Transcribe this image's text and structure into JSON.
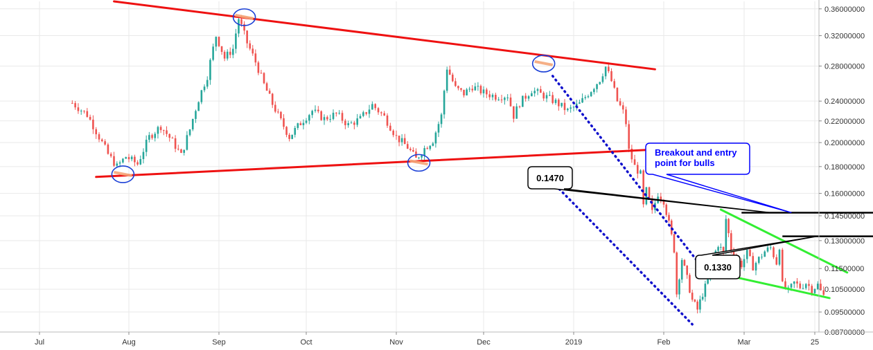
{
  "chart_data": {
    "type": "line",
    "title": "",
    "y_scale": "log",
    "ylim": [
      0.087,
      0.372
    ],
    "y_ticks": [
      "0.36000000",
      "0.32000000",
      "0.28000000",
      "0.24000000",
      "0.22000000",
      "0.20000000",
      "0.18000000",
      "0.16000000",
      "0.14500000",
      "0.13000000",
      "0.11500000",
      "0.10500000",
      "0.09500000",
      "0.08700000"
    ],
    "x_ticks": [
      "Jul",
      "Aug",
      "Sep",
      "Oct",
      "Nov",
      "Dec",
      "2019",
      "Feb",
      "Mar",
      "25"
    ],
    "price_series": {
      "name": "",
      "points": [
        {
          "d": "2018-06-12",
          "v": 0.238
        },
        {
          "d": "2018-06-17",
          "v": 0.226
        },
        {
          "d": "2018-06-21",
          "v": 0.205
        },
        {
          "d": "2018-06-24",
          "v": 0.19
        },
        {
          "d": "2018-06-27",
          "v": 0.18
        },
        {
          "d": "2018-06-30",
          "v": 0.188
        },
        {
          "d": "2018-07-04",
          "v": 0.182
        },
        {
          "d": "2018-07-08",
          "v": 0.205
        },
        {
          "d": "2018-07-12",
          "v": 0.215
        },
        {
          "d": "2018-07-16",
          "v": 0.201
        },
        {
          "d": "2018-07-19",
          "v": 0.189
        },
        {
          "d": "2018-07-22",
          "v": 0.212
        },
        {
          "d": "2018-07-25",
          "v": 0.242
        },
        {
          "d": "2018-07-28",
          "v": 0.268
        },
        {
          "d": "2018-07-31",
          "v": 0.32
        },
        {
          "d": "2018-08-03",
          "v": 0.29
        },
        {
          "d": "2018-08-06",
          "v": 0.302
        },
        {
          "d": "2018-08-08",
          "v": 0.345
        },
        {
          "d": "2018-08-11",
          "v": 0.31
        },
        {
          "d": "2018-08-14",
          "v": 0.285
        },
        {
          "d": "2018-08-17",
          "v": 0.258
        },
        {
          "d": "2018-08-20",
          "v": 0.237
        },
        {
          "d": "2018-08-23",
          "v": 0.22
        },
        {
          "d": "2018-08-26",
          "v": 0.205
        },
        {
          "d": "2018-08-30",
          "v": 0.218
        },
        {
          "d": "2018-09-03",
          "v": 0.23
        },
        {
          "d": "2018-09-07",
          "v": 0.222
        },
        {
          "d": "2018-09-11",
          "v": 0.227
        },
        {
          "d": "2018-09-15",
          "v": 0.216
        },
        {
          "d": "2018-09-19",
          "v": 0.222
        },
        {
          "d": "2018-09-23",
          "v": 0.236
        },
        {
          "d": "2018-09-27",
          "v": 0.224
        },
        {
          "d": "2018-10-01",
          "v": 0.205
        },
        {
          "d": "2018-10-05",
          "v": 0.196
        },
        {
          "d": "2018-10-08",
          "v": 0.186
        },
        {
          "d": "2018-10-11",
          "v": 0.195
        },
        {
          "d": "2018-10-14",
          "v": 0.202
        },
        {
          "d": "2018-10-17",
          "v": 0.225
        },
        {
          "d": "2018-10-19",
          "v": 0.278
        },
        {
          "d": "2018-10-22",
          "v": 0.254
        },
        {
          "d": "2018-10-25",
          "v": 0.248
        },
        {
          "d": "2018-10-28",
          "v": 0.256
        },
        {
          "d": "2018-11-01",
          "v": 0.249
        },
        {
          "d": "2018-11-05",
          "v": 0.245
        },
        {
          "d": "2018-11-09",
          "v": 0.246
        },
        {
          "d": "2018-11-11",
          "v": 0.225
        },
        {
          "d": "2018-11-13",
          "v": 0.238
        },
        {
          "d": "2018-11-17",
          "v": 0.252
        },
        {
          "d": "2018-11-21",
          "v": 0.246
        },
        {
          "d": "2018-11-25",
          "v": 0.239
        },
        {
          "d": "2018-11-29",
          "v": 0.23
        },
        {
          "d": "2018-12-03",
          "v": 0.237
        },
        {
          "d": "2018-12-07",
          "v": 0.252
        },
        {
          "d": "2018-12-10",
          "v": 0.264
        },
        {
          "d": "2018-12-12",
          "v": 0.279
        },
        {
          "d": "2018-12-14",
          "v": 0.262
        },
        {
          "d": "2018-12-16",
          "v": 0.24
        },
        {
          "d": "2018-12-18",
          "v": 0.229
        },
        {
          "d": "2018-12-19",
          "v": 0.218
        },
        {
          "d": "2018-12-20",
          "v": 0.193
        },
        {
          "d": "2018-12-22",
          "v": 0.18
        },
        {
          "d": "2018-12-24",
          "v": 0.174
        },
        {
          "d": "2018-12-25",
          "v": 0.151
        },
        {
          "d": "2018-12-26",
          "v": 0.162
        },
        {
          "d": "2018-12-28",
          "v": 0.147
        },
        {
          "d": "2018-12-30",
          "v": 0.16
        },
        {
          "d": "2019-01-01",
          "v": 0.155
        },
        {
          "d": "2019-01-03",
          "v": 0.14
        },
        {
          "d": "2019-01-05",
          "v": 0.125
        },
        {
          "d": "2019-01-06",
          "v": 0.103
        },
        {
          "d": "2019-01-08",
          "v": 0.12
        },
        {
          "d": "2019-01-10",
          "v": 0.11
        },
        {
          "d": "2019-01-12",
          "v": 0.1
        },
        {
          "d": "2019-01-14",
          "v": 0.096
        },
        {
          "d": "2019-01-16",
          "v": 0.103
        },
        {
          "d": "2019-01-18",
          "v": 0.109
        },
        {
          "d": "2019-01-20",
          "v": 0.12
        },
        {
          "d": "2019-01-22",
          "v": 0.128
        },
        {
          "d": "2019-01-24",
          "v": 0.123
        },
        {
          "d": "2019-01-25",
          "v": 0.143
        },
        {
          "d": "2019-01-27",
          "v": 0.125
        },
        {
          "d": "2019-01-29",
          "v": 0.12
        },
        {
          "d": "2019-01-31",
          "v": 0.117
        },
        {
          "d": "2019-02-02",
          "v": 0.123
        },
        {
          "d": "2019-02-04",
          "v": 0.116
        },
        {
          "d": "2019-02-06",
          "v": 0.12
        },
        {
          "d": "2019-02-08",
          "v": 0.124
        },
        {
          "d": "2019-02-10",
          "v": 0.126
        },
        {
          "d": "2019-02-12",
          "v": 0.118
        },
        {
          "d": "2019-02-13",
          "v": 0.127
        },
        {
          "d": "2019-02-14",
          "v": 0.107
        },
        {
          "d": "2019-02-16",
          "v": 0.104
        },
        {
          "d": "2019-02-18",
          "v": 0.108
        },
        {
          "d": "2019-02-20",
          "v": 0.106
        },
        {
          "d": "2019-02-22",
          "v": 0.108
        },
        {
          "d": "2019-02-24",
          "v": 0.105
        },
        {
          "d": "2019-02-26",
          "v": 0.107
        },
        {
          "d": "2019-02-27",
          "v": 0.104
        },
        {
          "d": "2019-02-28",
          "v": 0.102
        }
      ]
    },
    "annotations": {
      "triangle_upper_line": {
        "color": "#ee1111",
        "from": {
          "d": "2018-06-26",
          "v": 0.372
        },
        "to": {
          "d": "2018-12-29",
          "v": 0.276
        }
      },
      "triangle_lower_line": {
        "color": "#ee1111",
        "from": {
          "d": "2018-06-20",
          "v": 0.172
        },
        "to": {
          "d": "2018-12-29",
          "v": 0.194
        }
      },
      "pivot_circles": [
        {
          "d": "2018-06-29",
          "v": 0.174
        },
        {
          "d": "2018-08-10",
          "v": 0.347
        },
        {
          "d": "2018-10-09",
          "v": 0.183
        },
        {
          "d": "2018-11-21",
          "v": 0.283
        }
      ],
      "blue_dotted_upper": {
        "color": "#1111cc",
        "from": {
          "d": "2018-11-24",
          "v": 0.268
        },
        "to": {
          "d": "2019-01-18",
          "v": 0.112
        }
      },
      "blue_dotted_lower": {
        "color": "#1111cc",
        "from": {
          "d": "2018-11-24",
          "v": 0.168
        },
        "to": {
          "d": "2019-01-12",
          "v": 0.09
        }
      },
      "green_channel_upper": {
        "color": "#33ee33",
        "from": {
          "d": "2019-01-23",
          "v": 0.149
        },
        "to": {
          "d": "2019-03-08",
          "v": 0.113
        }
      },
      "green_channel_lower": {
        "color": "#33ee33",
        "from": {
          "d": "2019-01-24",
          "v": 0.112
        },
        "to": {
          "d": "2019-03-02",
          "v": 0.101
        }
      },
      "resistance_lines": [
        {
          "label": "0.1470",
          "value": 0.147,
          "from": "2019-01-31",
          "to": "2019-03-27",
          "color": "#000000"
        },
        {
          "label": "0.1330",
          "value": 0.1325,
          "from": "2019-02-14",
          "to": "2019-03-27",
          "color": "#000000"
        }
      ],
      "callouts": {
        "label_1470": "0.1470",
        "label_1330": "0.1330",
        "breakout_line1": "Breakout and entry",
        "breakout_line2": "point for bulls",
        "breakout_color": "#0000ff"
      }
    },
    "colors": {
      "up": "#26a69a",
      "down": "#ef5350",
      "grid": "#e9e9e9",
      "axis": "#333333"
    }
  }
}
